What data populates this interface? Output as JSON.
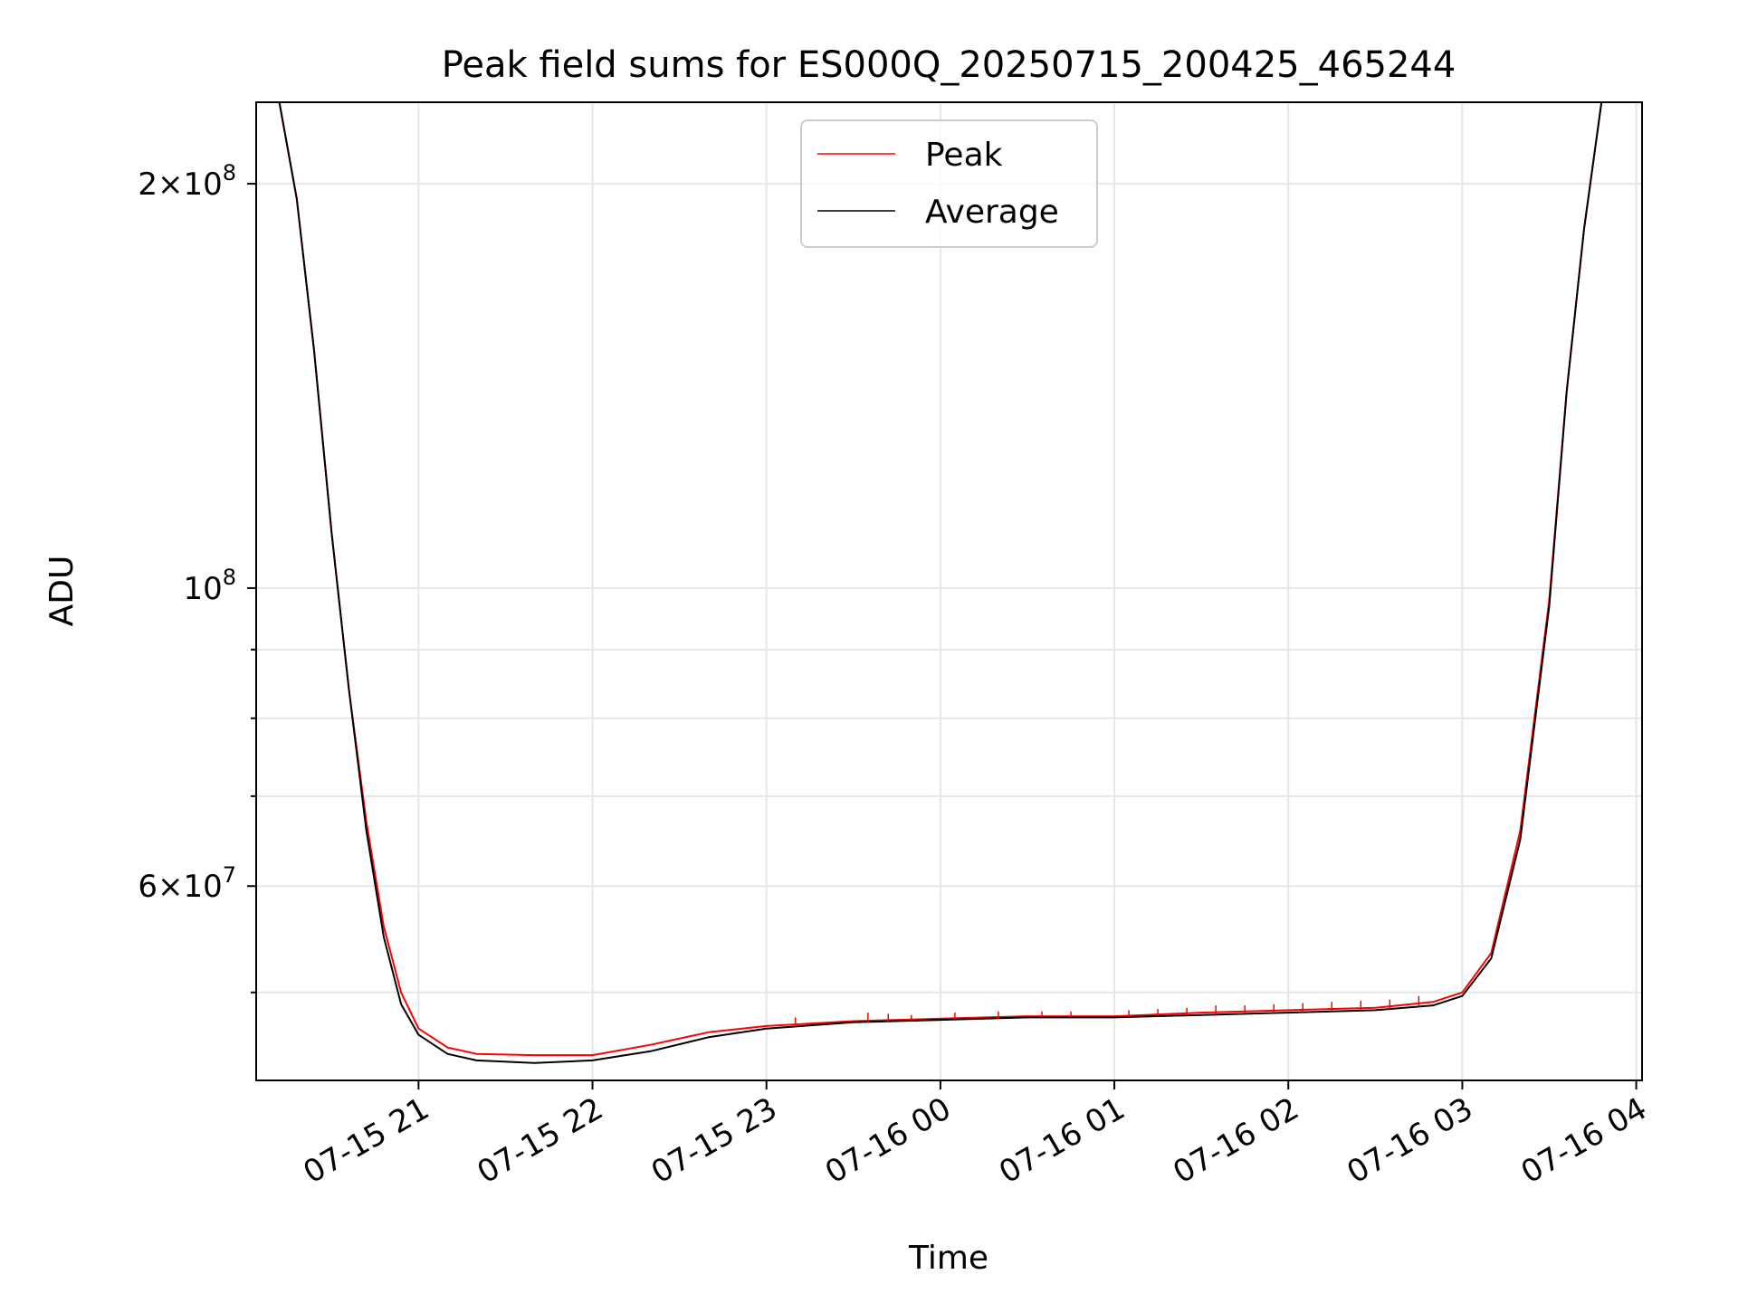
{
  "chart_data": {
    "type": "line",
    "title": "Peak field sums for ES000Q_20250715_200425_465244",
    "xlabel": "Time",
    "ylabel": "ADU",
    "yscale": "log",
    "xlim": [
      "2025-07-15 20:04",
      "2025-07-16 04:02"
    ],
    "ylim": [
      43000000,
      230000000
    ],
    "grid": true,
    "legend_position": "upper center",
    "x_ticks": [
      {
        "t": "2025-07-15 21:00",
        "label": "07-15 21"
      },
      {
        "t": "2025-07-15 22:00",
        "label": "07-15 22"
      },
      {
        "t": "2025-07-15 23:00",
        "label": "07-15 23"
      },
      {
        "t": "2025-07-16 00:00",
        "label": "07-16 00"
      },
      {
        "t": "2025-07-16 01:00",
        "label": "07-16 01"
      },
      {
        "t": "2025-07-16 02:00",
        "label": "07-16 02"
      },
      {
        "t": "2025-07-16 03:00",
        "label": "07-16 03"
      },
      {
        "t": "2025-07-16 04:00",
        "label": "07-16 04"
      }
    ],
    "y_major_ticks": [
      {
        "value": 60000000,
        "base": "6×10",
        "exp": "7"
      },
      {
        "value": 100000000,
        "base": "10",
        "exp": "8"
      },
      {
        "value": 200000000,
        "base": "2×10",
        "exp": "8"
      }
    ],
    "y_minor_ticks": [
      50000000,
      70000000,
      80000000,
      90000000
    ],
    "series": [
      {
        "name": "Peak",
        "color": "#ff0000",
        "points": [
          [
            "2025-07-15 20:04",
            230000000
          ],
          [
            "2025-07-15 20:12",
            230000000
          ],
          [
            "2025-07-15 20:18",
            195000000
          ],
          [
            "2025-07-15 20:24",
            150000000
          ],
          [
            "2025-07-15 20:30",
            110000000
          ],
          [
            "2025-07-15 20:36",
            84000000
          ],
          [
            "2025-07-15 20:42",
            67000000
          ],
          [
            "2025-07-15 20:48",
            56000000
          ],
          [
            "2025-07-15 20:54",
            50000000
          ],
          [
            "2025-07-15 21:00",
            47000000
          ],
          [
            "2025-07-15 21:10",
            45500000
          ],
          [
            "2025-07-15 21:20",
            45000000
          ],
          [
            "2025-07-15 21:40",
            44900000
          ],
          [
            "2025-07-15 22:00",
            44900000
          ],
          [
            "2025-07-15 22:20",
            45700000
          ],
          [
            "2025-07-15 22:40",
            46700000
          ],
          [
            "2025-07-15 23:00",
            47200000
          ],
          [
            "2025-07-15 23:30",
            47600000
          ],
          [
            "2025-07-16 00:00",
            47800000
          ],
          [
            "2025-07-16 00:30",
            48000000
          ],
          [
            "2025-07-16 01:00",
            48000000
          ],
          [
            "2025-07-16 01:30",
            48300000
          ],
          [
            "2025-07-16 02:00",
            48500000
          ],
          [
            "2025-07-16 02:30",
            48700000
          ],
          [
            "2025-07-16 02:50",
            49200000
          ],
          [
            "2025-07-16 03:00",
            50000000
          ],
          [
            "2025-07-16 03:10",
            53500000
          ],
          [
            "2025-07-16 03:20",
            66000000
          ],
          [
            "2025-07-16 03:30",
            98000000
          ],
          [
            "2025-07-16 03:36",
            140000000
          ],
          [
            "2025-07-16 03:42",
            185000000
          ],
          [
            "2025-07-16 03:48",
            230000000
          ],
          [
            "2025-07-16 04:02",
            230000000
          ]
        ]
      },
      {
        "name": "Average",
        "color": "#000000",
        "points": [
          [
            "2025-07-15 20:04",
            230000000
          ],
          [
            "2025-07-15 20:12",
            230000000
          ],
          [
            "2025-07-15 20:18",
            195000000
          ],
          [
            "2025-07-15 20:24",
            150000000
          ],
          [
            "2025-07-15 20:30",
            110000000
          ],
          [
            "2025-07-15 20:36",
            84000000
          ],
          [
            "2025-07-15 20:42",
            66000000
          ],
          [
            "2025-07-15 20:48",
            55000000
          ],
          [
            "2025-07-15 20:54",
            49000000
          ],
          [
            "2025-07-15 21:00",
            46500000
          ],
          [
            "2025-07-15 21:10",
            45000000
          ],
          [
            "2025-07-15 21:20",
            44500000
          ],
          [
            "2025-07-15 21:40",
            44300000
          ],
          [
            "2025-07-15 22:00",
            44500000
          ],
          [
            "2025-07-15 22:20",
            45200000
          ],
          [
            "2025-07-15 22:40",
            46300000
          ],
          [
            "2025-07-15 23:00",
            47000000
          ],
          [
            "2025-07-15 23:30",
            47500000
          ],
          [
            "2025-07-16 00:00",
            47700000
          ],
          [
            "2025-07-16 00:30",
            47900000
          ],
          [
            "2025-07-16 01:00",
            47900000
          ],
          [
            "2025-07-16 01:30",
            48100000
          ],
          [
            "2025-07-16 02:00",
            48300000
          ],
          [
            "2025-07-16 02:30",
            48500000
          ],
          [
            "2025-07-16 02:50",
            48900000
          ],
          [
            "2025-07-16 03:00",
            49700000
          ],
          [
            "2025-07-16 03:10",
            53000000
          ],
          [
            "2025-07-16 03:20",
            65000000
          ],
          [
            "2025-07-16 03:30",
            97000000
          ],
          [
            "2025-07-16 03:36",
            140000000
          ],
          [
            "2025-07-16 03:42",
            185000000
          ],
          [
            "2025-07-16 03:48",
            230000000
          ],
          [
            "2025-07-16 04:02",
            230000000
          ]
        ]
      }
    ],
    "peak_spikes": [
      [
        "2025-07-15 23:10",
        47900000
      ],
      [
        "2025-07-15 23:35",
        48300000
      ],
      [
        "2025-07-15 23:42",
        48200000
      ],
      [
        "2025-07-15 23:50",
        48100000
      ],
      [
        "2025-07-16 00:05",
        48300000
      ],
      [
        "2025-07-16 00:20",
        48400000
      ],
      [
        "2025-07-16 00:35",
        48400000
      ],
      [
        "2025-07-16 00:45",
        48400000
      ],
      [
        "2025-07-16 01:05",
        48500000
      ],
      [
        "2025-07-16 01:15",
        48600000
      ],
      [
        "2025-07-16 01:25",
        48700000
      ],
      [
        "2025-07-16 01:35",
        48900000
      ],
      [
        "2025-07-16 01:45",
        48900000
      ],
      [
        "2025-07-16 01:55",
        49000000
      ],
      [
        "2025-07-16 02:05",
        49100000
      ],
      [
        "2025-07-16 02:15",
        49200000
      ],
      [
        "2025-07-16 02:25",
        49300000
      ],
      [
        "2025-07-16 02:35",
        49400000
      ],
      [
        "2025-07-16 02:45",
        49700000
      ]
    ]
  }
}
